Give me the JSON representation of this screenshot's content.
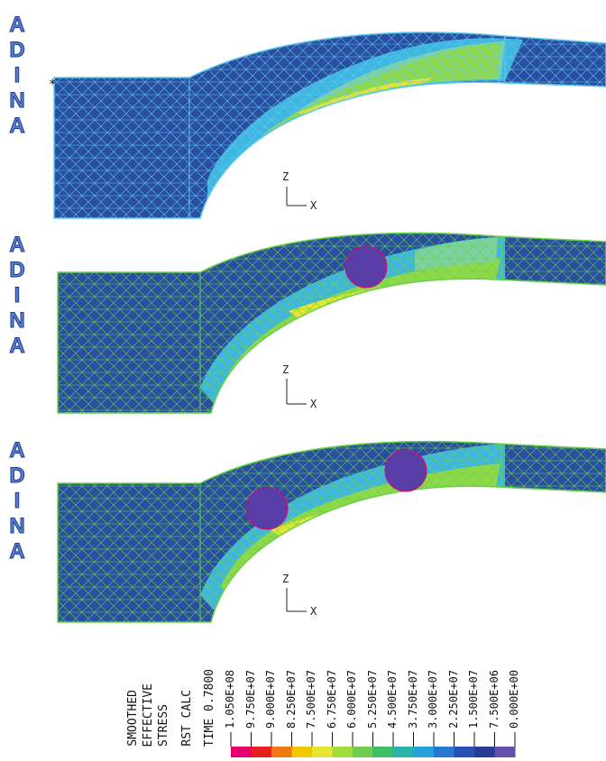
{
  "logo": {
    "text": [
      "A",
      "D",
      "I",
      "N",
      "A"
    ],
    "color": "#5b7ed2"
  },
  "panels": [
    {
      "axis": {
        "z": "Z",
        "x": "X"
      }
    },
    {
      "axis": {
        "z": "Z",
        "x": "X"
      }
    },
    {
      "axis": {
        "z": "Z",
        "x": "X"
      }
    }
  ],
  "legend": {
    "title_lines": [
      "SMOOTHED",
      "EFFECTIVE",
      "STRESS"
    ],
    "calc_label": "RST CALC",
    "time_label": "TIME 0.7800",
    "ticks": [
      "1.050E+08",
      "9.750E+07",
      "9.000E+07",
      "8.250E+07",
      "7.500E+07",
      "6.750E+07",
      "6.000E+07",
      "5.250E+07",
      "4.500E+07",
      "3.750E+07",
      "3.000E+07",
      "2.250E+07",
      "1.500E+07",
      "7.500E+06",
      "0.000E+00"
    ],
    "colors": [
      "#e6006e",
      "#e61e1e",
      "#f07814",
      "#f0c800",
      "#e6e632",
      "#a0dc3c",
      "#6ecc50",
      "#3cbe64",
      "#28b4aa",
      "#28a0dc",
      "#2878d2",
      "#2850b4",
      "#283c96",
      "#6450aa"
    ]
  },
  "colors": {
    "background": "#2a4fa0",
    "mesh": "#5ec8f0",
    "mesh_green": "#66d24a",
    "circle": "#5a3ea8"
  }
}
